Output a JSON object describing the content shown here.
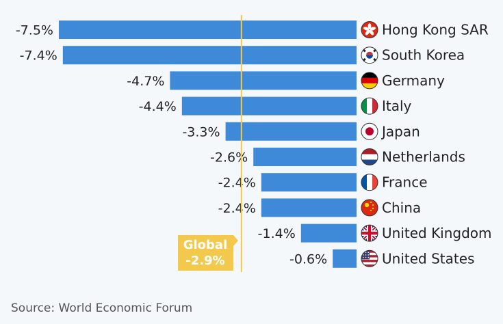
{
  "chart_data": {
    "type": "bar",
    "orientation": "horizontal",
    "categories": [
      "Hong Kong SAR",
      "South Korea",
      "Germany",
      "Italy",
      "Japan",
      "Netherlands",
      "France",
      "China",
      "United Kingdom",
      "United States"
    ],
    "values": [
      -7.5,
      -7.4,
      -4.7,
      -4.4,
      -3.3,
      -2.6,
      -2.4,
      -2.4,
      -1.4,
      -0.6
    ],
    "value_labels": [
      "-7.5%",
      "-7.4%",
      "-4.7%",
      "-4.4%",
      "-3.3%",
      "-2.6%",
      "-2.4%",
      "-2.4%",
      "-1.4%",
      "-0.6%"
    ],
    "flag_icons": [
      "hong-kong-flag-icon",
      "south-korea-flag-icon",
      "germany-flag-icon",
      "italy-flag-icon",
      "japan-flag-icon",
      "netherlands-flag-icon",
      "france-flag-icon",
      "china-flag-icon",
      "united-kingdom-flag-icon",
      "united-states-flag-icon"
    ],
    "xlim": [
      -8,
      0
    ],
    "bar_color": "#3f8ad8",
    "reference_line": {
      "value": -2.9,
      "label": "Global",
      "value_label": "-2.9%",
      "color": "#f2c94c"
    }
  },
  "source": "Source: World Economic Forum"
}
